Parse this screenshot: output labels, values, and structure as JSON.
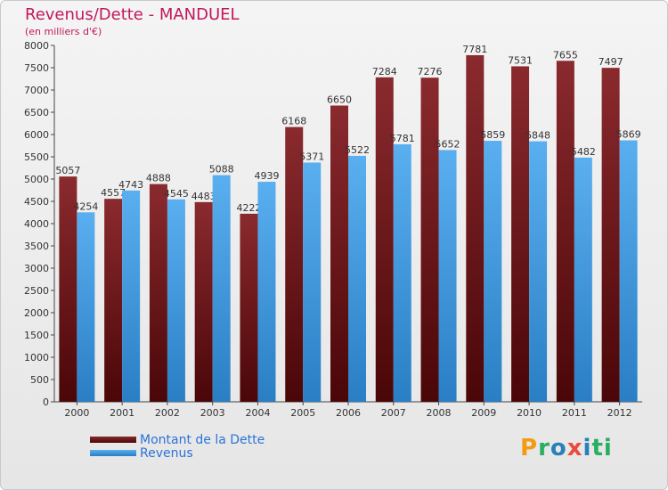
{
  "title": "Revenus/Dette - MANDUEL",
  "subtitle": "(en milliers d'€)",
  "logo": {
    "letters": [
      "P",
      "r",
      "o",
      "x",
      "i",
      "t",
      "i"
    ],
    "colors": [
      "#f39c12",
      "#27ae60",
      "#2980b9",
      "#e74c3c",
      "#2980b9",
      "#27ae60",
      "#27ae60"
    ]
  },
  "chart_data": {
    "type": "bar",
    "title": "Revenus/Dette - MANDUEL",
    "subtitle": "(en milliers d'€)",
    "categories": [
      "2000",
      "2001",
      "2002",
      "2003",
      "2004",
      "2005",
      "2006",
      "2007",
      "2008",
      "2009",
      "2010",
      "2011",
      "2012"
    ],
    "series": [
      {
        "name": "Montant de la Dette",
        "color": "#7a1e22",
        "values": [
          5057,
          4557,
          4888,
          4483,
          4222,
          6168,
          6650,
          7284,
          7276,
          7781,
          7531,
          7655,
          7497
        ]
      },
      {
        "name": "Revenus",
        "color": "#3d99e0",
        "values": [
          4254,
          4743,
          4545,
          5088,
          4939,
          5371,
          5522,
          5781,
          5652,
          5859,
          5848,
          5482,
          5869
        ]
      }
    ],
    "ylim": [
      0,
      8000
    ],
    "yticks": [
      0,
      500,
      1000,
      1500,
      2000,
      2500,
      3000,
      3500,
      4000,
      4500,
      5000,
      5500,
      6000,
      6500,
      7000,
      7500,
      8000
    ],
    "grid": false,
    "legend": "bottom-left"
  }
}
